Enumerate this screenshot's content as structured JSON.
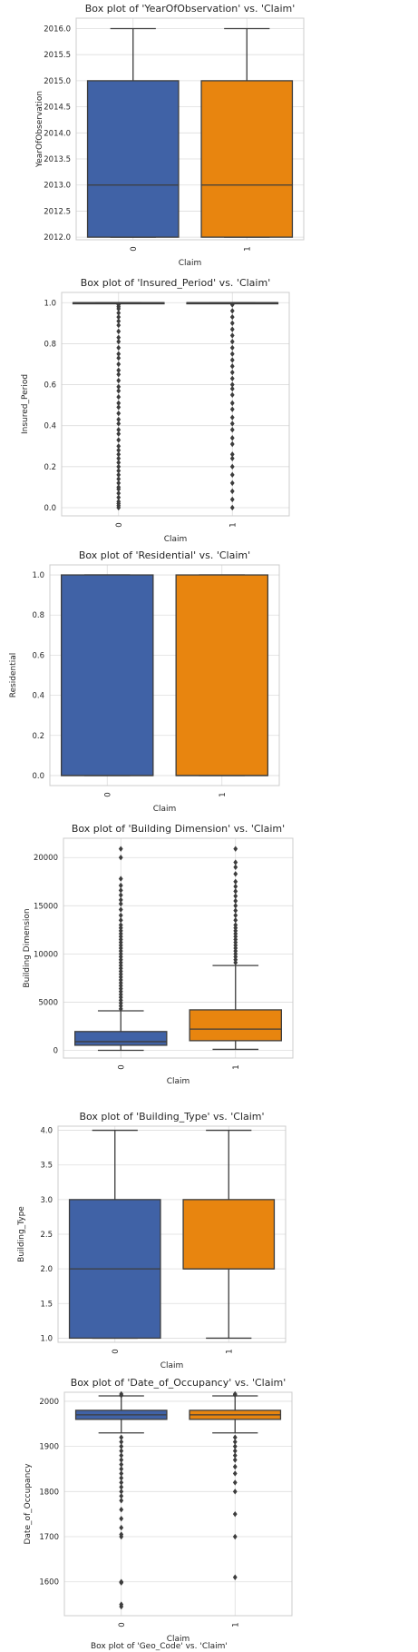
{
  "colors": {
    "series0": "#4062a6",
    "series1": "#e8850f",
    "line": "#3d3d3d"
  },
  "chart_data": [
    {
      "type": "box",
      "title": "Box plot of 'YearOfObservation' vs. 'Claim'",
      "xlabel": "Claim",
      "ylabel": "YearOfObservation",
      "categories": [
        "0",
        "1"
      ],
      "ylim": [
        2011.95,
        2016.2
      ],
      "yticks": [
        2012.0,
        2012.5,
        2013.0,
        2013.5,
        2014.0,
        2014.5,
        2015.0,
        2015.5,
        2016.0
      ],
      "ytick_labels": [
        "2012.0",
        "2012.5",
        "2013.0",
        "2013.5",
        "2014.0",
        "2014.5",
        "2015.0",
        "2015.5",
        "2016.0"
      ],
      "grid": true,
      "boxes": [
        {
          "category": "0",
          "whisker_low": 2012,
          "q1": 2012,
          "median": 2013,
          "q3": 2015,
          "whisker_high": 2016,
          "outliers": []
        },
        {
          "category": "1",
          "whisker_low": 2012,
          "q1": 2012,
          "median": 2013,
          "q3": 2015,
          "whisker_high": 2016,
          "outliers": []
        }
      ]
    },
    {
      "type": "box",
      "title": "Box plot of 'Insured_Period' vs. 'Claim'",
      "xlabel": "Claim",
      "ylabel": "Insured_Period",
      "categories": [
        "0",
        "1"
      ],
      "ylim": [
        -0.04,
        1.05
      ],
      "yticks": [
        0.0,
        0.2,
        0.4,
        0.6,
        0.8,
        1.0
      ],
      "ytick_labels": [
        "0.0",
        "0.2",
        "0.4",
        "0.6",
        "0.8",
        "1.0"
      ],
      "grid": true,
      "boxes": [
        {
          "category": "0",
          "whisker_low": 1.0,
          "q1": 1.0,
          "median": 1.0,
          "q3": 1.0,
          "whisker_high": 1.0,
          "outliers": [
            0.0,
            0.01,
            0.02,
            0.03,
            0.05,
            0.07,
            0.09,
            0.1,
            0.12,
            0.14,
            0.16,
            0.18,
            0.2,
            0.22,
            0.24,
            0.26,
            0.28,
            0.3,
            0.33,
            0.36,
            0.38,
            0.41,
            0.43,
            0.46,
            0.49,
            0.51,
            0.54,
            0.57,
            0.59,
            0.62,
            0.65,
            0.67,
            0.7,
            0.73,
            0.75,
            0.78,
            0.81,
            0.83,
            0.86,
            0.89,
            0.91,
            0.93,
            0.95,
            0.97,
            0.98,
            0.99
          ]
        },
        {
          "category": "1",
          "whisker_low": 1.0,
          "q1": 1.0,
          "median": 1.0,
          "q3": 1.0,
          "whisker_high": 1.0,
          "outliers": [
            0.0,
            0.04,
            0.08,
            0.12,
            0.16,
            0.2,
            0.24,
            0.26,
            0.31,
            0.34,
            0.38,
            0.41,
            0.44,
            0.48,
            0.51,
            0.55,
            0.58,
            0.6,
            0.63,
            0.66,
            0.69,
            0.72,
            0.75,
            0.78,
            0.81,
            0.84,
            0.87,
            0.9,
            0.93,
            0.96,
            0.99
          ]
        }
      ]
    },
    {
      "type": "box",
      "title": "Box plot of 'Residential' vs. 'Claim'",
      "xlabel": "Claim",
      "ylabel": "Residential",
      "categories": [
        "0",
        "1"
      ],
      "ylim": [
        -0.05,
        1.05
      ],
      "yticks": [
        0.0,
        0.2,
        0.4,
        0.6,
        0.8,
        1.0
      ],
      "ytick_labels": [
        "0.0",
        "0.2",
        "0.4",
        "0.6",
        "0.8",
        "1.0"
      ],
      "grid": true,
      "boxes": [
        {
          "category": "0",
          "whisker_low": 0,
          "q1": 0,
          "median": 0,
          "q3": 1,
          "whisker_high": 1,
          "outliers": []
        },
        {
          "category": "1",
          "whisker_low": 0,
          "q1": 0,
          "median": 0,
          "q3": 1,
          "whisker_high": 1,
          "outliers": []
        }
      ]
    },
    {
      "type": "box",
      "title": "Box plot of 'Building Dimension' vs. 'Claim'",
      "xlabel": "Claim",
      "ylabel": "Building Dimension",
      "categories": [
        "0",
        "1"
      ],
      "ylim": [
        -800,
        22000
      ],
      "yticks": [
        0,
        5000,
        10000,
        15000,
        20000
      ],
      "ytick_labels": [
        "0",
        "5000",
        "10000",
        "15000",
        "20000"
      ],
      "grid": true,
      "boxes": [
        {
          "category": "0",
          "whisker_low": 1,
          "q1": 528,
          "median": 900,
          "q3": 1950,
          "whisker_high": 4100,
          "outliers": [
            4300,
            4600,
            4900,
            5200,
            5500,
            5800,
            6100,
            6400,
            6700,
            7000,
            7300,
            7600,
            7900,
            8200,
            8500,
            8800,
            9100,
            9400,
            9700,
            10000,
            10300,
            10600,
            10900,
            11200,
            11500,
            11800,
            12100,
            12400,
            12700,
            13000,
            13500,
            14000,
            14600,
            15200,
            15600,
            16100,
            16600,
            17100,
            17800,
            20000,
            20900
          ]
        },
        {
          "category": "1",
          "whisker_low": 100,
          "q1": 1000,
          "median": 2200,
          "q3": 4200,
          "whisker_high": 8800,
          "outliers": [
            9100,
            9400,
            9700,
            10000,
            10300,
            10600,
            10900,
            11200,
            11500,
            11800,
            12100,
            12400,
            12700,
            13000,
            13500,
            14000,
            14500,
            15000,
            15500,
            16000,
            16500,
            17000,
            17500,
            18300,
            19000,
            19500,
            20900
          ]
        }
      ]
    },
    {
      "type": "box",
      "title": "Box plot of 'Building_Type' vs. 'Claim'",
      "xlabel": "Claim",
      "ylabel": "Building_Type",
      "categories": [
        "0",
        "1"
      ],
      "ylim": [
        0.94,
        4.06
      ],
      "yticks": [
        1.0,
        1.5,
        2.0,
        2.5,
        3.0,
        3.5,
        4.0
      ],
      "ytick_labels": [
        "1.0",
        "1.5",
        "2.0",
        "2.5",
        "3.0",
        "3.5",
        "4.0"
      ],
      "grid": true,
      "boxes": [
        {
          "category": "0",
          "whisker_low": 1,
          "q1": 1,
          "median": 2,
          "q3": 3,
          "whisker_high": 4,
          "outliers": []
        },
        {
          "category": "1",
          "whisker_low": 1,
          "q1": 2,
          "median": 2,
          "q3": 3,
          "whisker_high": 4,
          "outliers": []
        }
      ]
    },
    {
      "type": "box",
      "title": "Box plot of 'Date_of_Occupancy' vs. 'Claim'",
      "xlabel": "Claim",
      "ylabel": "Date_of_Occupancy",
      "categories": [
        "0",
        "1"
      ],
      "ylim": [
        1525,
        2020
      ],
      "yticks": [
        1600,
        1700,
        1800,
        1900,
        2000
      ],
      "ytick_labels": [
        "1600",
        "1700",
        "1800",
        "1900",
        "2000"
      ],
      "grid": true,
      "boxes": [
        {
          "category": "0",
          "whisker_low": 1930,
          "q1": 1960,
          "median": 1970,
          "q3": 1980,
          "whisker_high": 2012,
          "outliers": [
            1545,
            1550,
            1598,
            1600,
            1700,
            1705,
            1720,
            1740,
            1760,
            1780,
            1790,
            1800,
            1810,
            1820,
            1830,
            1840,
            1850,
            1860,
            1870,
            1880,
            1890,
            1900,
            1910,
            1920,
            2013,
            2016
          ]
        },
        {
          "category": "1",
          "whisker_low": 1930,
          "q1": 1960,
          "median": 1970,
          "q3": 1980,
          "whisker_high": 2012,
          "outliers": [
            1610,
            1700,
            1750,
            1800,
            1820,
            1840,
            1855,
            1870,
            1880,
            1890,
            1900,
            1910,
            1920,
            2014,
            2016
          ]
        }
      ]
    }
  ],
  "cut_caption": "Box plot of 'Geo_Code' vs. 'Claim'"
}
